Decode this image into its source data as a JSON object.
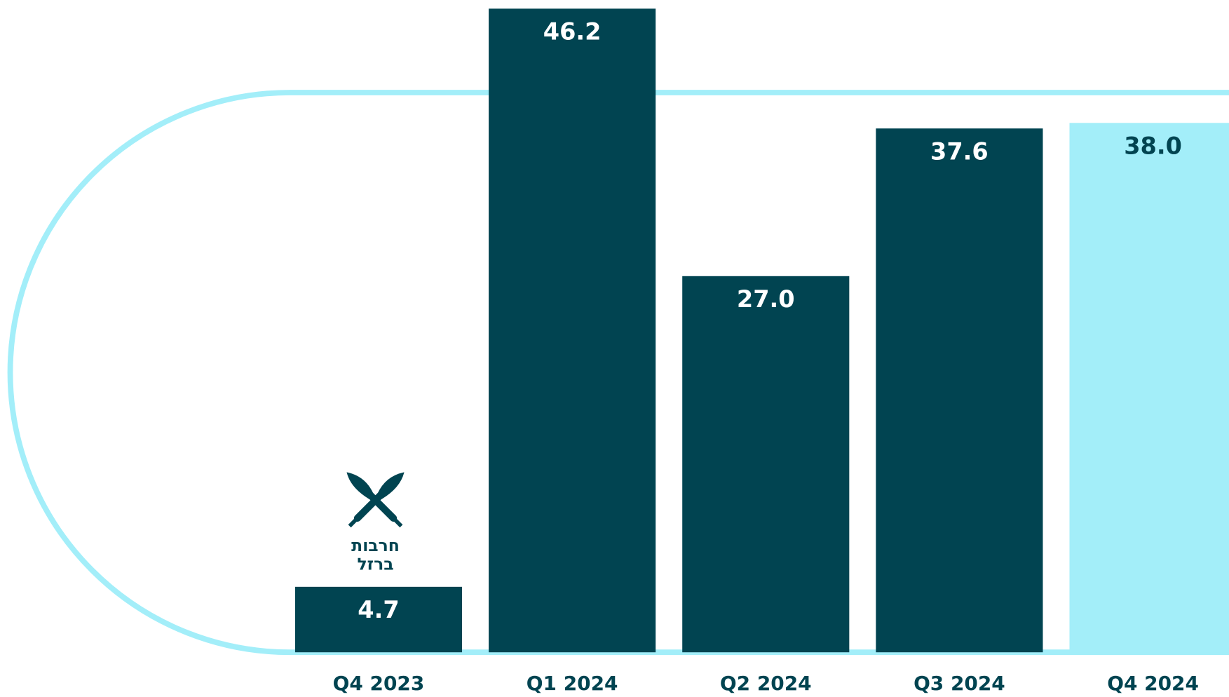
{
  "chart_data": {
    "type": "bar",
    "categories": [
      "Q4 2023",
      "Q1 2024",
      "Q2 2024",
      "Q3 2024",
      "Q4 2024"
    ],
    "values": [
      4.7,
      46.2,
      27.0,
      37.6,
      38.0
    ],
    "value_labels": [
      "4.7",
      "46.2",
      "27.0",
      "37.6",
      "38.0"
    ],
    "colors": [
      "#014451",
      "#014451",
      "#014451",
      "#014451",
      "#a3eef9"
    ],
    "annotation": {
      "category": "Q4 2023",
      "lines": [
        "חרבות",
        "ברזל"
      ]
    }
  }
}
